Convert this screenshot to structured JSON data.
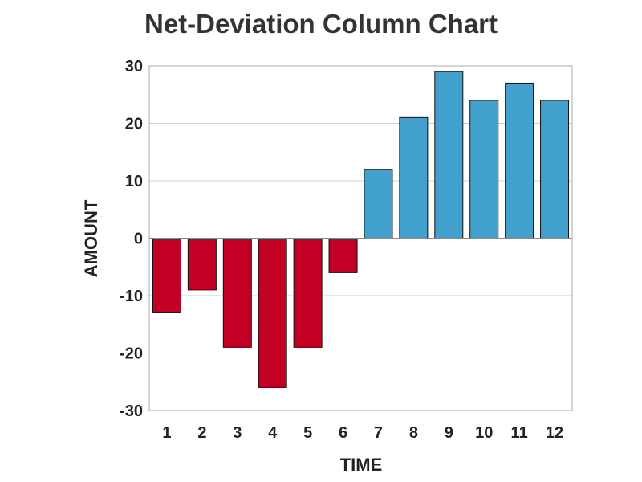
{
  "chart_data": {
    "type": "bar",
    "title": "Net-Deviation Column Chart",
    "xlabel": "TIME",
    "ylabel": "AMOUNT",
    "categories": [
      "1",
      "2",
      "3",
      "4",
      "5",
      "6",
      "7",
      "8",
      "9",
      "10",
      "11",
      "12"
    ],
    "values": [
      -13,
      -9,
      -19,
      -26,
      -19,
      -6,
      12,
      21,
      29,
      24,
      27,
      24
    ],
    "ylim": [
      -30,
      30
    ],
    "yticks": [
      -30,
      -20,
      -10,
      0,
      10,
      20,
      30
    ],
    "grid": true,
    "colors": {
      "negative": "#c10023",
      "positive": "#41a0cc"
    }
  }
}
